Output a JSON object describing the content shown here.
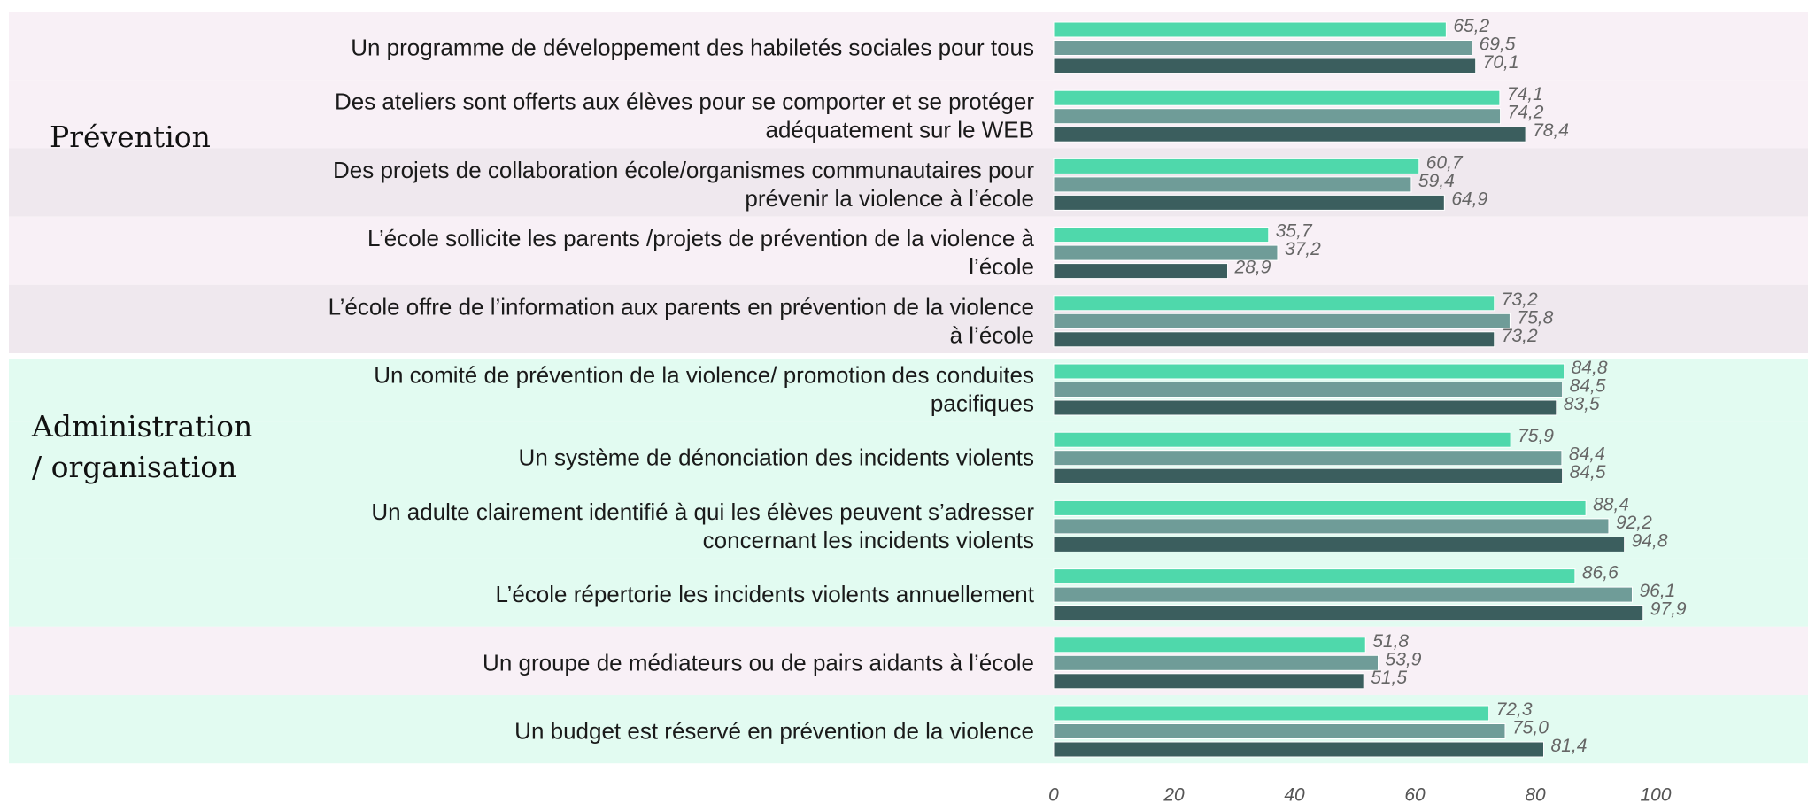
{
  "chart_data": {
    "type": "bar",
    "orientation": "horizontal",
    "groups": [
      {
        "label": [
          "Prévention"
        ]
      },
      {
        "label": [
          "Administration",
          "/ organisation"
        ]
      }
    ],
    "categories": [
      [
        "Un programme de développement des habiletés sociales pour tous"
      ],
      [
        "Des ateliers sont offerts aux élèves pour se comporter et se protéger",
        "adéquatement sur le WEB"
      ],
      [
        "Des projets de collaboration école/organismes communautaires pour",
        "prévenir la violence à l’école"
      ],
      [
        "L’école sollicite les parents /projets de prévention de la violence à",
        "l’école"
      ],
      [
        "L’école offre de l’information aux parents en prévention de la violence",
        "à l’école"
      ],
      [
        "Un comité de prévention de la violence/ promotion des conduites",
        "pacifiques"
      ],
      [
        "Un système de dénonciation des incidents violents"
      ],
      [
        "Un adulte clairement identifié à qui les élèves peuvent s’adresser",
        "concernant les incidents violents"
      ],
      [
        "L’école répertorie les incidents violents annuellement"
      ],
      [
        "Un groupe de médiateurs ou de pairs aidants à l’école"
      ],
      [
        "Un budget est réservé en prévention de la  violence"
      ]
    ],
    "series": [
      {
        "color": "#4fd8ab",
        "values": [
          65.2,
          74.1,
          60.7,
          35.7,
          73.2,
          84.8,
          75.9,
          88.4,
          86.6,
          51.8,
          72.3
        ],
        "value_labels": [
          "65,2",
          "74,1",
          "60,7",
          "35,7",
          "73,2",
          "84,8",
          "75,9",
          "88,4",
          "86,6",
          "51,8",
          "72,3"
        ]
      },
      {
        "color": "#6f9c98",
        "values": [
          69.5,
          74.2,
          59.4,
          37.2,
          75.8,
          84.5,
          84.4,
          92.2,
          96.1,
          53.9,
          75.0
        ],
        "value_labels": [
          "69,5",
          "74,2",
          "59,4",
          "37,2",
          "75,8",
          "84,5",
          "84,4",
          "92,2",
          "96,1",
          "53,9",
          "75,0"
        ]
      },
      {
        "color": "#3b5e5e",
        "values": [
          70.1,
          78.4,
          64.9,
          28.9,
          73.2,
          83.5,
          84.5,
          94.8,
          97.9,
          51.5,
          81.4
        ],
        "value_labels": [
          "70,1",
          "78,4",
          "64,9",
          "28,9",
          "73,2",
          "83,5",
          "84,5",
          "94,8",
          "97,9",
          "51,5",
          "81,4"
        ]
      }
    ],
    "xlim": [
      0,
      100
    ],
    "xticks": [
      0,
      20,
      40,
      60,
      80,
      100
    ]
  }
}
